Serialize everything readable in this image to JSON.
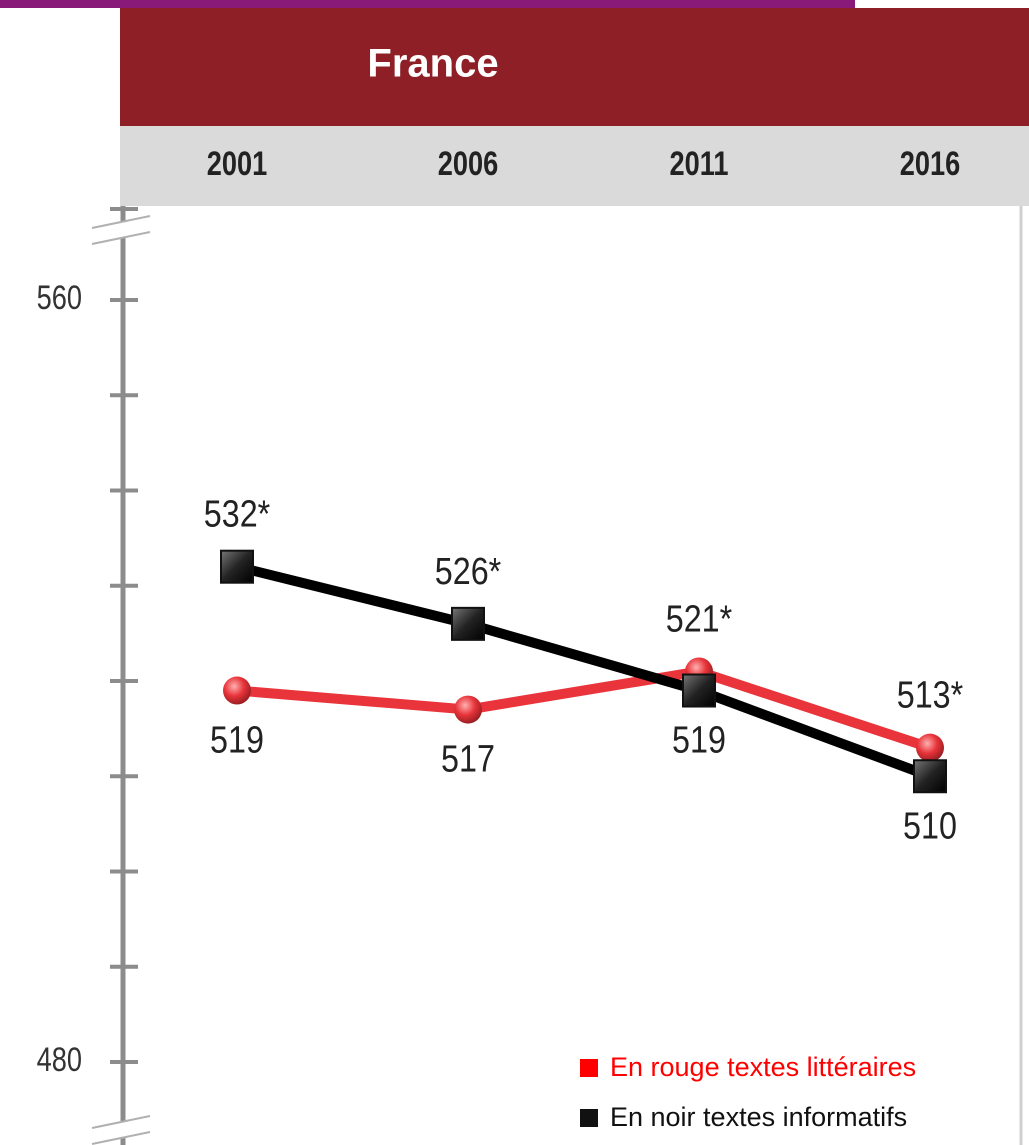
{
  "chart_data": {
    "type": "line",
    "title": "France",
    "categories": [
      "2001",
      "2006",
      "2011",
      "2016"
    ],
    "series": [
      {
        "name": "En rouge textes littéraires",
        "color": "#e8343a",
        "marker": "circle",
        "values": [
          519,
          517,
          521,
          513
        ],
        "value_labels": [
          "519",
          "517",
          "521*",
          "513*"
        ]
      },
      {
        "name": "En noir textes informatifs",
        "color": "#000000",
        "marker": "square",
        "values": [
          532,
          526,
          519,
          510
        ],
        "value_labels": [
          "532*",
          "526*",
          "519",
          "510"
        ]
      }
    ],
    "ylim": [
      480,
      560
    ],
    "yticks": [
      480,
      560
    ],
    "minor_yticks": [
      490,
      500,
      510,
      520,
      530,
      540,
      550
    ],
    "legend": "bottom-right"
  }
}
